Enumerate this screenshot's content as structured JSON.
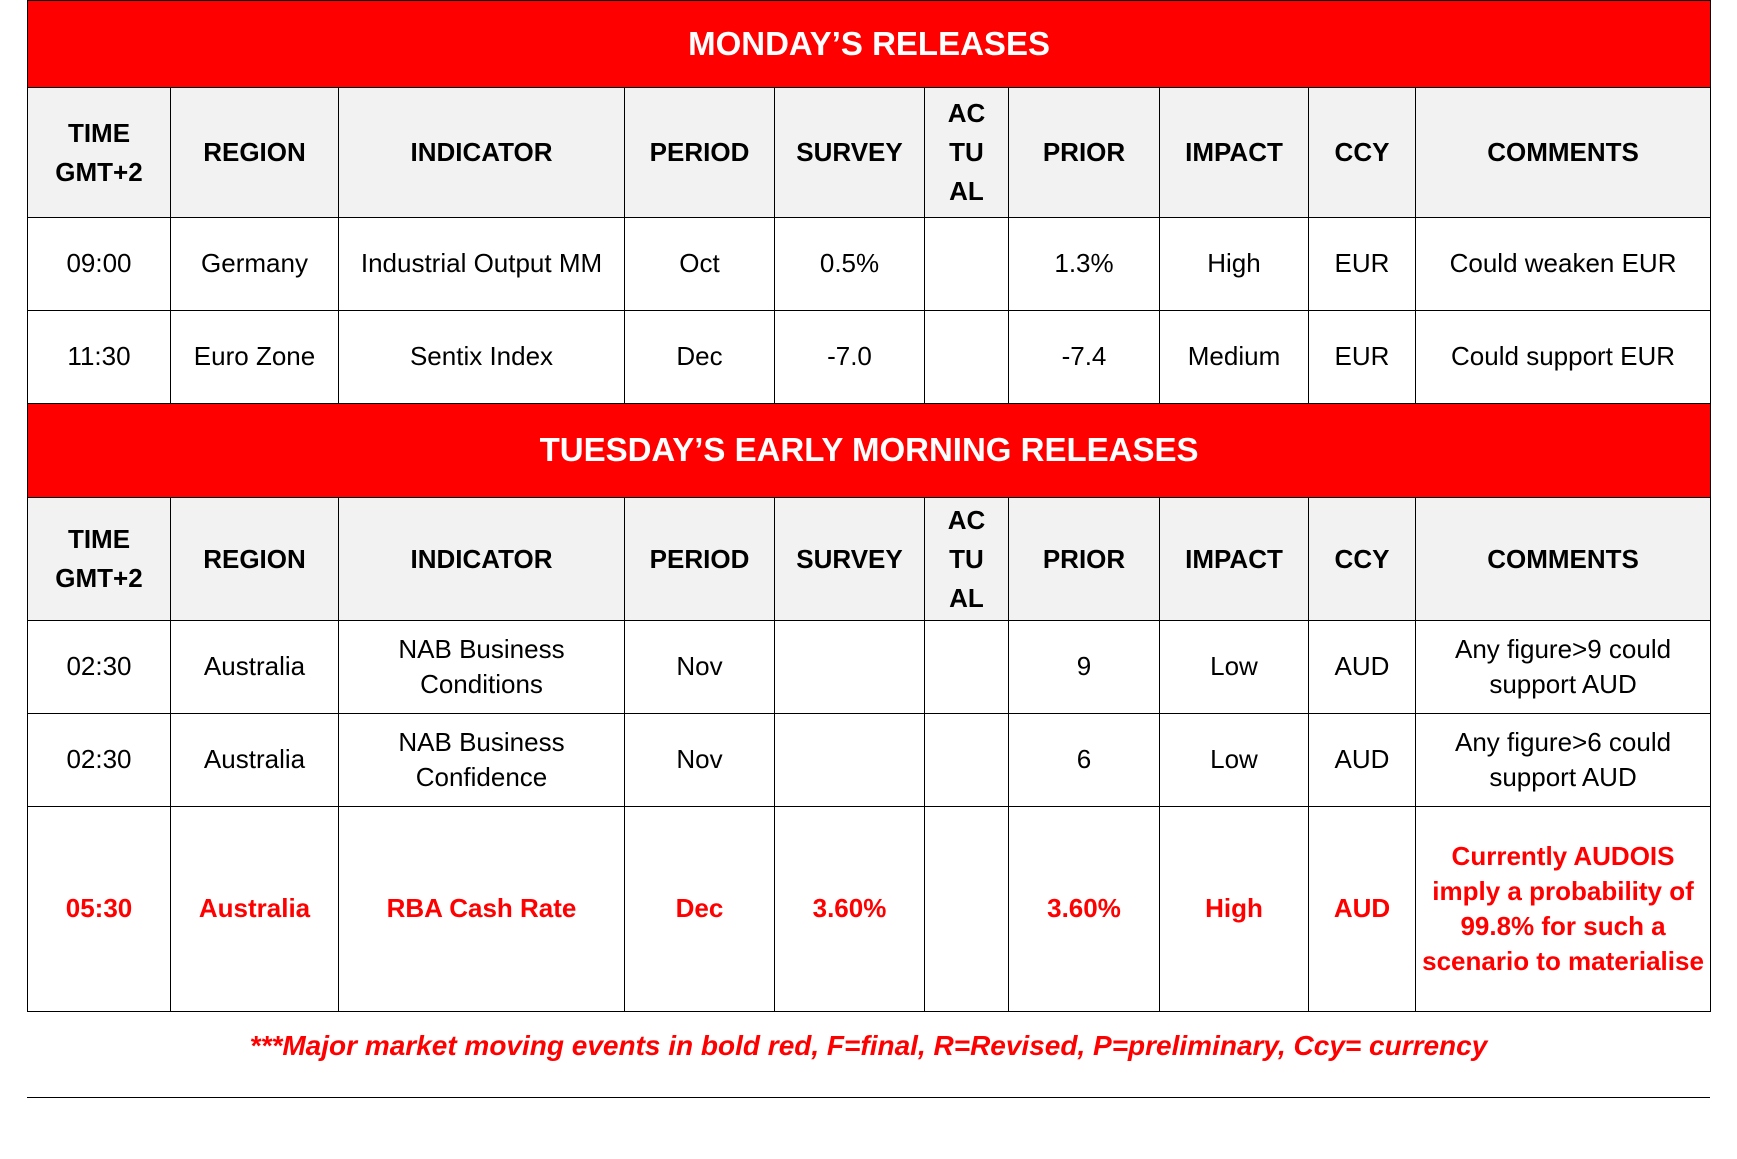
{
  "monday": {
    "title": "MONDAY’S RELEASES",
    "headers": [
      "TIME GMT+2",
      "REGION",
      "INDICATOR",
      "PERIOD",
      "SURVEY",
      "AC TU AL",
      "PRIOR",
      "IMPACT",
      "CCY",
      "COMMENTS"
    ],
    "rows": [
      [
        "09:00",
        "Germany",
        "Industrial Output MM",
        "Oct",
        "0.5%",
        "",
        "1.3%",
        "High",
        "EUR",
        "Could weaken EUR"
      ],
      [
        "11:30",
        "Euro Zone",
        "Sentix Index",
        "Dec",
        "-7.0",
        "",
        "-7.4",
        "Medium",
        "EUR",
        "Could support EUR"
      ]
    ]
  },
  "tuesday": {
    "title": "TUESDAY’S EARLY MORNING RELEASES",
    "headers": [
      "TIME GMT+2",
      "REGION",
      "INDICATOR",
      "PERIOD",
      "SURVEY",
      "AC TU AL",
      "PRIOR",
      "IMPACT",
      "CCY",
      "COMMENTS"
    ],
    "rows": [
      [
        "02:30",
        "Australia",
        "NAB Business Conditions",
        "Nov",
        "",
        "",
        "9",
        "Low",
        "AUD",
        "Any figure>9 could support AUD"
      ],
      [
        "02:30",
        "Australia",
        "NAB Business Confidence",
        "Nov",
        "",
        "",
        "6",
        "Low",
        "AUD",
        "Any figure>6 could support AUD"
      ],
      [
        "05:30",
        "Australia",
        "RBA Cash Rate",
        "Dec",
        "3.60%",
        "",
        "3.60%",
        "High",
        "AUD",
        "Currently AUDOIS imply a probability of 99.8% for such a scenario to materialise"
      ]
    ]
  },
  "footer": "***Major market moving events in bold red, F=final, R=Revised, P=preliminary, Ccy= currency",
  "colors": {
    "banner": "#ff0000",
    "header_bg": "#f2f2f2",
    "major_text": "#ff0000"
  }
}
